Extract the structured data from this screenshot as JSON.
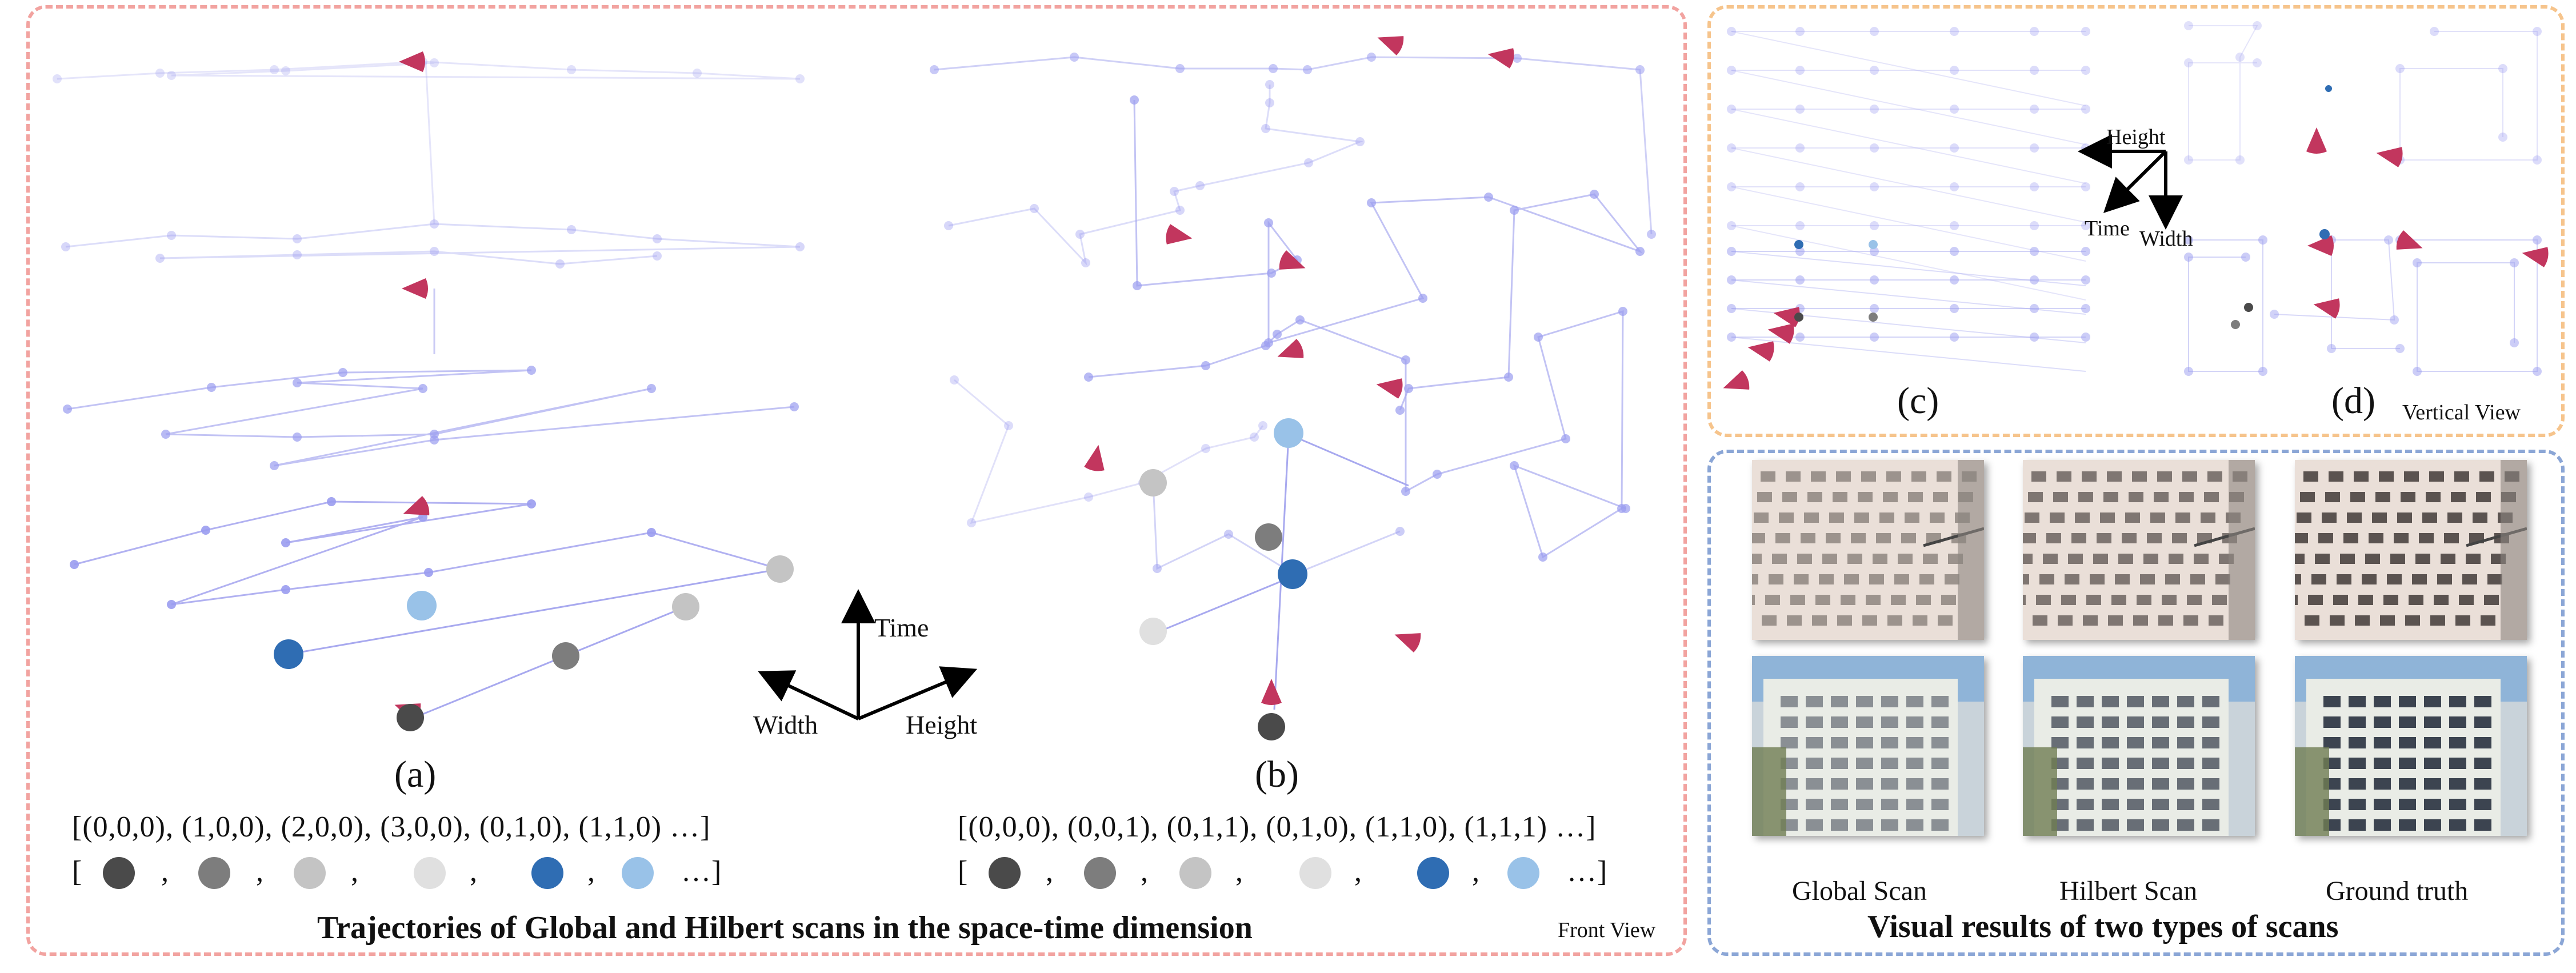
{
  "panel_a": {
    "label": "(a)",
    "coords": "[(0,0,0),  (1,0,0), (2,0,0), (3,0,0), (0,1,0), (1,1,0) …]",
    "dots_open": "[",
    "dots_close": "…]",
    "sep": ","
  },
  "panel_b": {
    "label": "(b)",
    "coords": "[(0,0,0),  (0,0,1), (0,1,1), (0,1,0), (1,1,0), (1,1,1) …]",
    "dots_open": "[",
    "dots_close": "…]",
    "sep": ","
  },
  "axes_front": {
    "time": "Time",
    "width": "Width",
    "height": "Height"
  },
  "axes_vertical": {
    "time": "Time",
    "width": "Width",
    "height": "Height"
  },
  "left_title": "Trajectories of Global and Hilbert scans in the space-time dimension",
  "front_view": "Front View",
  "panel_c": {
    "label": "(c)"
  },
  "panel_d": {
    "label": "(d)"
  },
  "vertical_view": "Vertical View",
  "captions": {
    "global": "Global Scan",
    "hilbert": "Hilbert Scan",
    "truth": "Ground truth"
  },
  "right_title": "Visual results of two types of scans",
  "colors": {
    "dot_1": "#4a4a4a",
    "dot_2": "#7d7d7d",
    "dot_3": "#c4c4c4",
    "dot_4": "#e0e0e0",
    "dot_5": "#2f6db3",
    "dot_6": "#99c2e8",
    "node": "#9a9cf0",
    "edge": "#a8a9ef",
    "cone": "#c2365e"
  }
}
